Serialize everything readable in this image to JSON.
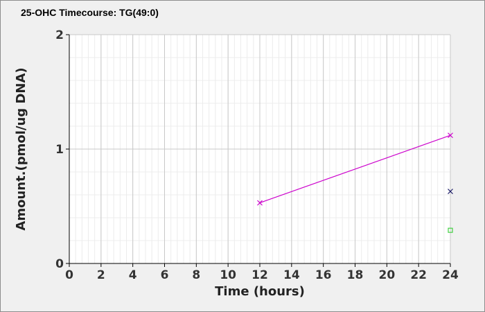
{
  "chart_data": {
    "type": "scatter",
    "title": "25-OHC Timecourse: TG(49:0)",
    "xlabel": "Time (hours)",
    "ylabel": "Amount.(pmol/ug DNA)",
    "xlim": [
      0,
      24
    ],
    "ylim": [
      0,
      2
    ],
    "x_ticks": [
      "0",
      "2",
      "4",
      "6",
      "8",
      "10",
      "12",
      "14",
      "16",
      "18",
      "20",
      "22",
      "24"
    ],
    "y_ticks": [
      "0",
      "1",
      "2"
    ],
    "grid": true,
    "legend": "none",
    "series": [
      {
        "marker": "x",
        "color": "#cc00cc",
        "line": true,
        "points": [
          [
            12,
            0.53
          ],
          [
            24,
            1.12
          ]
        ]
      },
      {
        "marker": "x",
        "color": "#1a1a66",
        "line": false,
        "points": [
          [
            24,
            0.63
          ]
        ]
      },
      {
        "marker": "square",
        "color": "#33cc33",
        "line": false,
        "points": [
          [
            24,
            0.29
          ]
        ]
      }
    ]
  }
}
